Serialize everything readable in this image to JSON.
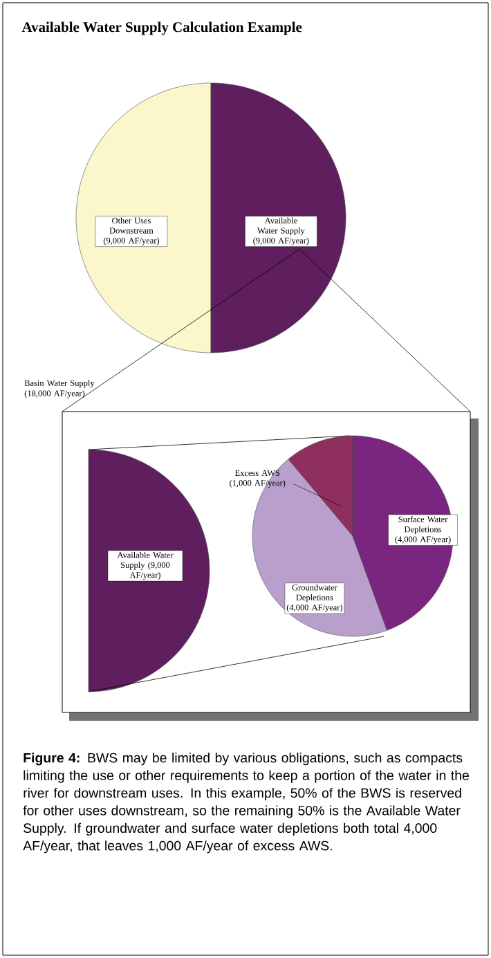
{
  "chart_data": [
    {
      "type": "pie",
      "title": "Available Water Supply Calculation Example",
      "categories": [
        "Other Uses Downstream",
        "Available Water Supply"
      ],
      "values": [
        9000,
        9000
      ],
      "value_labels": [
        "(9,000 AF/year)",
        "(9,000 AF/year)"
      ],
      "colors": [
        "#fbf6cc",
        "#5f1e5e"
      ],
      "annotations": [
        "Basin Water Supply (18,000 AF/year)"
      ]
    },
    {
      "type": "pie",
      "categories": [
        "Excess AWS",
        "Groundwater Depletions",
        "Surface Water Depletions"
      ],
      "values": [
        1000,
        4000,
        4000
      ],
      "value_labels": [
        "(1,000 AF/year)",
        "(4,000 AF/year)",
        "(4,000 AF/year)"
      ],
      "colors": [
        "#8e2f5e",
        "#b9a0cc",
        "#7a2680"
      ],
      "annotations": [
        "Available Water Supply (9,000 AF/year)",
        "**Figure 4:** BWS may be limited by various obligations, such as compacts limiting the use or other requirements to keep a portion of the water in the river for downstream uses. In this example, 50% of the BWS is reserved for other uses downstream, so the remaining 50% is the Available Water Supply. If groundwater and surface water depletions both total 4,000 AF/year, that leaves 1,000 AF/year of excess AWS."
      ]
    }
  ]
}
